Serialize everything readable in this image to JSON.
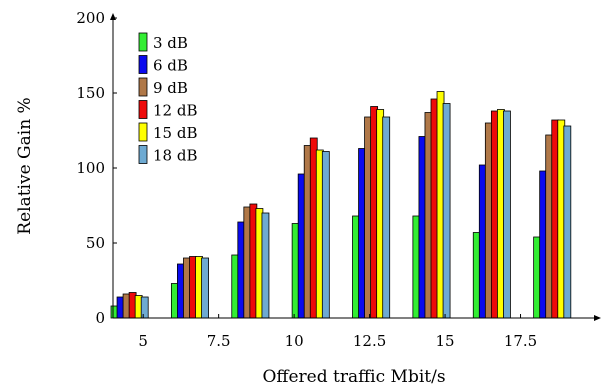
{
  "chart_data": {
    "type": "bar",
    "title": "",
    "xlabel": "Offered traffic Mbit/s",
    "ylabel": "Relative Gain %",
    "xlim": [
      4.0,
      20.0
    ],
    "ylim": [
      0,
      200
    ],
    "xticks": [
      5,
      7.5,
      10,
      12.5,
      15,
      17.5
    ],
    "xtick_labels": [
      "5",
      "7.5",
      "10",
      "12.5",
      "15",
      "17.5"
    ],
    "yticks": [
      0,
      50,
      100,
      150,
      200
    ],
    "ytick_labels": [
      "0",
      "50",
      "100",
      "150",
      "200"
    ],
    "legend_position": "top-left",
    "grid": false,
    "series": [
      {
        "name": "3 dB",
        "color": "#33ee33",
        "x": [
          4.05,
          6.05,
          8.05,
          10.05,
          12.05,
          14.05,
          16.05,
          18.05
        ],
        "values": [
          8,
          23,
          42,
          63,
          68,
          68,
          57,
          54
        ]
      },
      {
        "name": "6 dB",
        "color": "#0a0aee",
        "x": [
          4.25,
          6.25,
          8.25,
          10.25,
          12.25,
          14.25,
          16.25,
          18.25
        ],
        "values": [
          14,
          36,
          64,
          96,
          113,
          121,
          102,
          98
        ]
      },
      {
        "name": "9 dB",
        "color": "#b07848",
        "x": [
          4.45,
          6.45,
          8.45,
          10.45,
          12.45,
          14.45,
          16.45,
          18.45
        ],
        "values": [
          16,
          40,
          74,
          115,
          134,
          137,
          130,
          122
        ]
      },
      {
        "name": "12 dB",
        "color": "#ee0a0a",
        "x": [
          4.65,
          6.65,
          8.65,
          10.65,
          12.65,
          14.65,
          16.65,
          18.65
        ],
        "values": [
          17,
          41,
          76,
          120,
          141,
          146,
          138,
          132
        ]
      },
      {
        "name": "15 dB",
        "color": "#ffff00",
        "x": [
          4.85,
          6.85,
          8.85,
          10.85,
          12.85,
          14.85,
          16.85,
          18.85
        ],
        "values": [
          15,
          41,
          73,
          112,
          139,
          151,
          139,
          132
        ]
      },
      {
        "name": "18 dB",
        "color": "#6eaad2",
        "x": [
          5.05,
          7.05,
          9.05,
          11.05,
          13.05,
          15.05,
          17.05,
          19.05
        ],
        "values": [
          14,
          40,
          70,
          111,
          134,
          143,
          138,
          128
        ]
      }
    ]
  }
}
